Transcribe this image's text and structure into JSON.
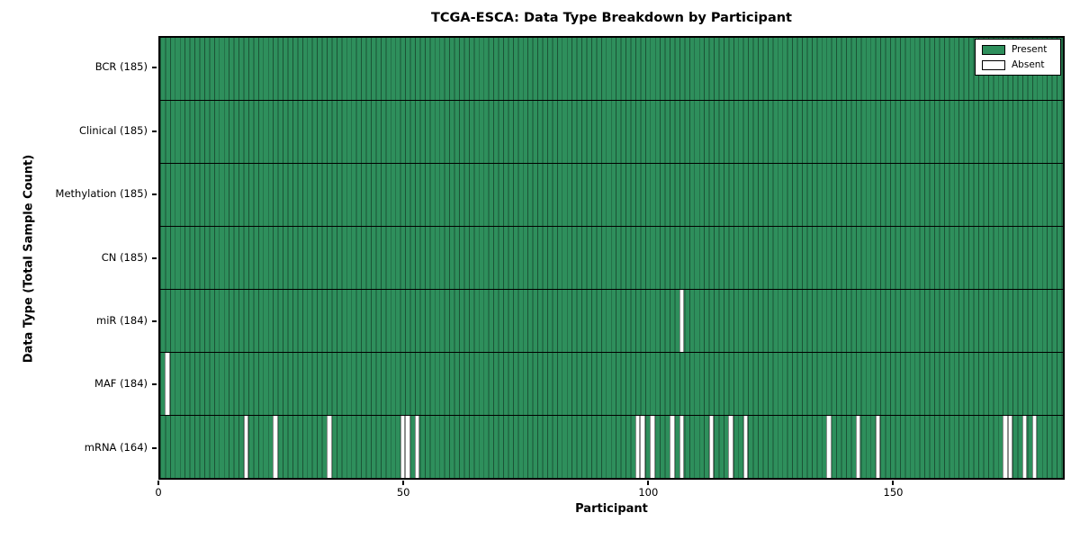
{
  "title": "TCGA-ESCA: Data Type Breakdown by Participant",
  "axes": {
    "xlabel": "Participant",
    "ylabel": "Data Type (Total Sample Count)"
  },
  "legend": {
    "present_label": "Present",
    "absent_label": "Absent"
  },
  "colors": {
    "present": "#2e8f5c",
    "absent": "#ffffff",
    "bar_edge": "rgba(0,0,0,0.42)",
    "axis": "#000000"
  },
  "chart_data": {
    "type": "heatmap",
    "title": "TCGA-ESCA: Data Type Breakdown by Participant",
    "xlabel": "Participant",
    "ylabel": "Data Type (Total Sample Count)",
    "xlim": [
      0,
      185
    ],
    "x_ticks": [
      0,
      50,
      100,
      150
    ],
    "n_participants": 185,
    "grid": false,
    "legend_position": "upper right",
    "legend": [
      {
        "label": "Present",
        "color": "#2e8f5c"
      },
      {
        "label": "Absent",
        "color": "#ffffff"
      }
    ],
    "rows": [
      {
        "name": "BCR",
        "label": "BCR (185)",
        "present_count": 185,
        "absent_participants": []
      },
      {
        "name": "Clinical",
        "label": "Clinical (185)",
        "present_count": 185,
        "absent_participants": []
      },
      {
        "name": "Methylation",
        "label": "Methylation (185)",
        "present_count": 185,
        "absent_participants": []
      },
      {
        "name": "CN",
        "label": "CN (185)",
        "present_count": 185,
        "absent_participants": []
      },
      {
        "name": "miR",
        "label": "miR (184)",
        "present_count": 184,
        "absent_participants": [
          106
        ]
      },
      {
        "name": "MAF",
        "label": "MAF (184)",
        "present_count": 184,
        "absent_participants": [
          1
        ]
      },
      {
        "name": "mRNA",
        "label": "mRNA (164)",
        "present_count": 164,
        "absent_participants": [
          17,
          23,
          34,
          49,
          50,
          52,
          97,
          98,
          100,
          104,
          106,
          112,
          116,
          119,
          136,
          142,
          146,
          172,
          173,
          176,
          178
        ]
      }
    ]
  }
}
